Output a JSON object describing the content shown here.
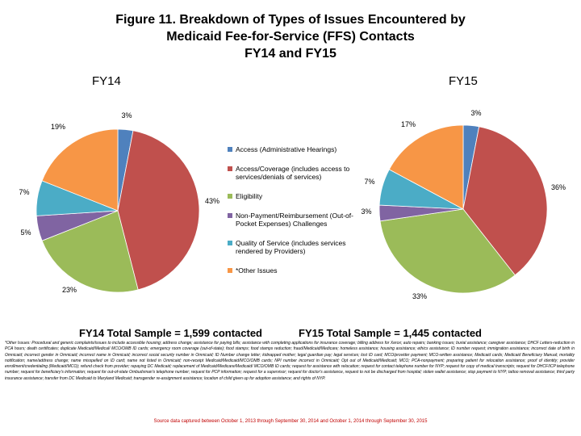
{
  "title_lines": [
    "Figure 11. Breakdown of Types of Issues Encountered by",
    "Medicaid Fee-for-Service (FFS) Contacts",
    "FY14 and FY15"
  ],
  "legend": [
    {
      "label": "Access (Administrative Hearings)",
      "color": "#4f81bd"
    },
    {
      "label": "Access/Coverage (includes access to services/denials of services)",
      "color": "#c0504d"
    },
    {
      "label": "Eligibility",
      "color": "#9bbb59"
    },
    {
      "label": "Non-Payment/Reimbursement (Out-of-Pocket Expenses) Challenges",
      "color": "#8064a2"
    },
    {
      "label": "Quality of Service (includes services rendered by Providers)",
      "color": "#4bacc6"
    },
    {
      "label": "*Other Issues",
      "color": "#f79646"
    }
  ],
  "chart_data": [
    {
      "type": "pie",
      "title": "FY14",
      "categories": [
        "Access (Administrative Hearings)",
        "Access/Coverage (includes access to services/denials of services)",
        "Eligibility",
        "Non-Payment/Reimbursement (Out-of-Pocket Expenses) Challenges",
        "Quality of Service (includes services rendered by Providers)",
        "*Other Issues"
      ],
      "values": [
        3,
        43,
        23,
        5,
        7,
        19
      ],
      "value_labels": [
        "3%",
        "43%",
        "23%",
        "5%",
        "7%",
        "19%"
      ],
      "sample_label": "FY14 Total Sample = 1,599 contacted"
    },
    {
      "type": "pie",
      "title": "FY15",
      "categories": [
        "Access (Administrative Hearings)",
        "Access/Coverage (includes access to services/denials of services)",
        "Eligibility",
        "Non-Payment/Reimbursement (Out-of-Pocket Expenses) Challenges",
        "Quality of Service (includes services rendered by Providers)",
        "*Other Issues"
      ],
      "values": [
        3,
        36,
        33,
        3,
        7,
        17
      ],
      "value_labels": [
        "3%",
        "36%",
        "33%",
        "3%",
        "7%",
        "17%"
      ],
      "sample_label": "FY15 Total Sample = 1,445 contacted"
    }
  ],
  "footnote": "*Other Issues: Procedural and generic complaints/issues to include accessible housing; address change; assistance for paying bills; assistance with completing applications for insurance coverage; billing address for Xerox; auto repairs; banking issues; burial assistance; caregiver assistance; DHCF Letters-reduction in PCA hours; death certificates; duplicate Medicaid/Medical/ MCO/OMB ID cards; emergency room coverage (out-of-state); food stamps; food stamps reduction; fraud/Medicaid/Medicare; homeless assistance; housing assistance; ethics assistance; ID number request; immigration assistance; incorrect date of birth in Omnicaid; incorrect gender in Omnicaid; incorrect name in Omnicaid; incorrect social security number in Omnicaid; ID Number change letter; kidnapped mother; legal guardian pay; legal services; lost ID card; MCO/provider payment; MCO-written assistance; Medicaid cards; Medicaid Beneficiary Manual; mortality notification; name/address change; name misspelled on ID card; name not listed in Omnicaid; non-receipt Medicaid/Medicaid/MCO/OMB cards; NPI number incorrect in Omnicaid; Opt out of Medicaid/Medicaid; MCO; PCA-nonpayment; preparing patient for relocation assistance; proof of identity; provider enrollment/credentialing (Medicaid/MCO); refund check from provider; repaying DC Medicaid; replacement of Medicaid/Medicare/Medicaid/ MCO/OMB ID cards; request for assistance with relocation; request for contact telephone number for NYP; request for copy of medical transcripts; request for DHCF/ICP telephone number; request for beneficiary's information; request for out-of-state Ombudsman's telephone number; request for PCP information; request for a supervisor; request for doctor's assistance, request to not be discharged from hospital; stolen wallet assistance; stop payment to NYP; tattoo removal assistance; third party insurance assistance; transfer from DC Medicaid to Maryland Medicaid; transgender re-assignment assistance; location of child given up for adoption assistance; and rights of NYP.",
  "source": "Source data captured between October 1, 2013 through September 30, 2014 and October 1, 2014 through September 30, 2015"
}
